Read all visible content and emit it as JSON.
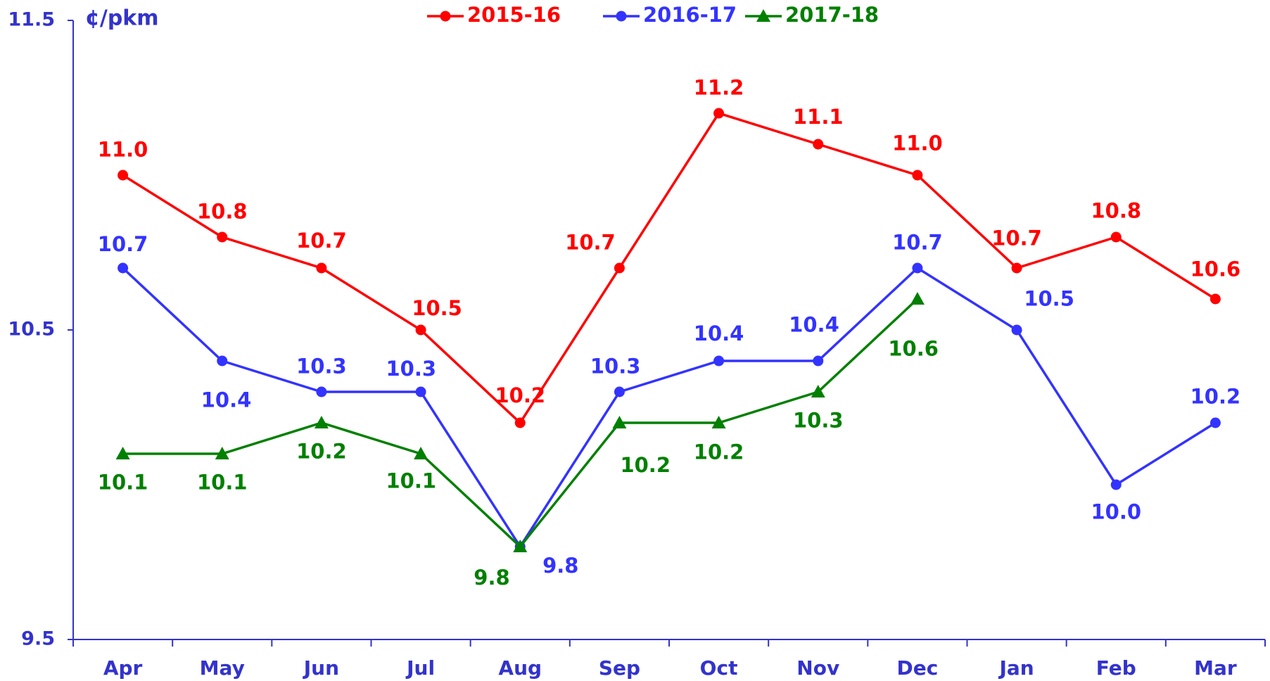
{
  "chart_data": {
    "type": "line",
    "y_axis_label": "¢/pkm",
    "categories": [
      "Apr",
      "May",
      "Jun",
      "Jul",
      "Aug",
      "Sep",
      "Oct",
      "Nov",
      "Dec",
      "Jan",
      "Feb",
      "Mar"
    ],
    "series": [
      {
        "name": "2015-16",
        "color": "#ff0000",
        "marker": "circle",
        "values": [
          11.0,
          10.8,
          10.7,
          10.5,
          10.2,
          10.7,
          11.2,
          11.1,
          11.0,
          10.7,
          10.8,
          10.6
        ],
        "value_labels": [
          "11.0",
          "10.8",
          "10.7",
          "10.5",
          "10.2",
          "10.7",
          "11.2",
          "11.1",
          "11.0",
          "10.7",
          "10.8",
          "10.6"
        ]
      },
      {
        "name": "2016-17",
        "color": "#3333ff",
        "marker": "circle",
        "values": [
          10.7,
          10.4,
          10.3,
          10.3,
          9.8,
          10.3,
          10.4,
          10.4,
          10.7,
          10.5,
          10.0,
          10.2
        ],
        "value_labels": [
          "10.7",
          "10.4",
          "10.3",
          "10.3",
          "9.8",
          "10.3",
          "10.4",
          "10.4",
          "10.7",
          "10.5",
          "10.0",
          "10.2"
        ]
      },
      {
        "name": "2017-18",
        "color": "#008000",
        "marker": "triangle",
        "values": [
          10.1,
          10.1,
          10.2,
          10.1,
          9.8,
          10.2,
          10.2,
          10.3,
          10.6,
          null,
          null,
          null
        ],
        "value_labels": [
          "10.1",
          "10.1",
          "10.2",
          "10.1",
          "9.8",
          "10.2",
          "10.2",
          "10.3",
          "10.6",
          null,
          null,
          null
        ]
      }
    ],
    "ylim": [
      9.5,
      11.5
    ],
    "yticks": [
      9.5,
      10.5,
      11.5
    ],
    "axis_color": "#3333cc",
    "grid": false
  }
}
